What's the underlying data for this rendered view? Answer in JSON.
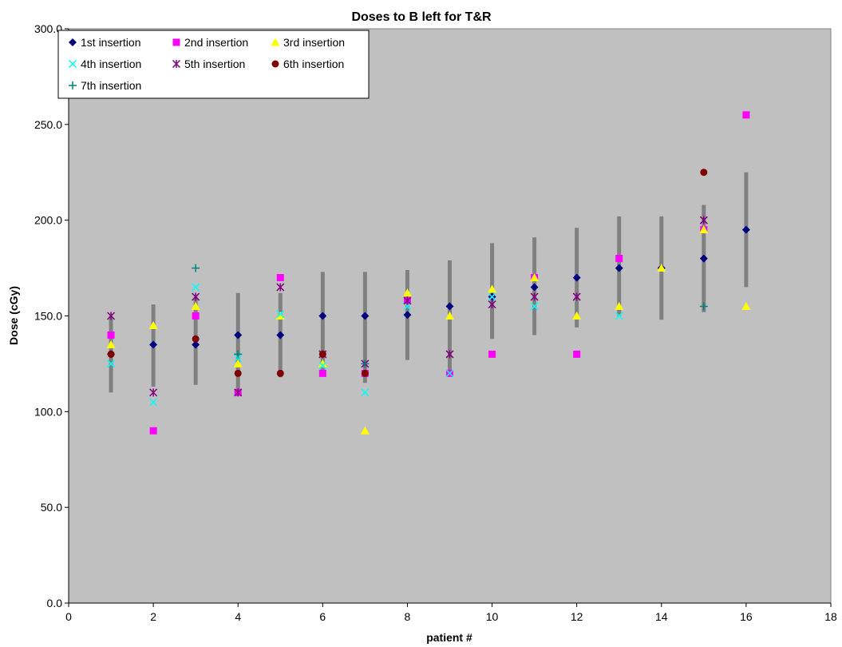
{
  "chart_data": {
    "type": "scatter",
    "title": "Doses to B left for T&R",
    "xlabel": "patient #",
    "ylabel": "Dose (cGy)",
    "xlim": [
      0,
      18
    ],
    "ylim": [
      0,
      300
    ],
    "x_ticks": [
      "0",
      "2",
      "4",
      "6",
      "8",
      "10",
      "12",
      "14",
      "16",
      "18"
    ],
    "y_ticks": [
      "0.0",
      "50.0",
      "100.0",
      "150.0",
      "200.0",
      "250.0",
      "300.0"
    ],
    "grid": false,
    "legend_position": "top-left",
    "plot_background": "#c0c0c0",
    "range_bar_color": "#808080",
    "range_bars": [
      {
        "x": 1,
        "low": 110,
        "high": 150
      },
      {
        "x": 2,
        "low": 113,
        "high": 156
      },
      {
        "x": 3,
        "low": 114,
        "high": 160
      },
      {
        "x": 4,
        "low": 110,
        "high": 162
      },
      {
        "x": 5,
        "low": 118,
        "high": 162
      },
      {
        "x": 6,
        "low": 120,
        "high": 173
      },
      {
        "x": 7,
        "low": 115,
        "high": 173
      },
      {
        "x": 8,
        "low": 127,
        "high": 174
      },
      {
        "x": 9,
        "low": 120,
        "high": 179
      },
      {
        "x": 10,
        "low": 138,
        "high": 188
      },
      {
        "x": 11,
        "low": 140,
        "high": 191
      },
      {
        "x": 12,
        "low": 144,
        "high": 196
      },
      {
        "x": 13,
        "low": 150,
        "high": 202
      },
      {
        "x": 14,
        "low": 148,
        "high": 202
      },
      {
        "x": 15,
        "low": 152,
        "high": 208
      },
      {
        "x": 16,
        "low": 165,
        "high": 225
      }
    ],
    "series": [
      {
        "name": "1st insertion",
        "marker": "diamond",
        "color": "#000080",
        "points": [
          [
            1,
            130
          ],
          [
            2,
            135
          ],
          [
            3,
            135
          ],
          [
            4,
            140
          ],
          [
            5,
            140
          ],
          [
            6,
            150
          ],
          [
            7,
            150
          ],
          [
            8,
            150.5
          ],
          [
            9,
            155
          ],
          [
            10,
            160
          ],
          [
            11,
            165
          ],
          [
            12,
            170
          ],
          [
            13,
            175
          ],
          [
            14,
            175
          ],
          [
            15,
            180
          ],
          [
            16,
            195
          ]
        ]
      },
      {
        "name": "2nd insertion",
        "marker": "square",
        "color": "#ff00ff",
        "points": [
          [
            1,
            140
          ],
          [
            2,
            90
          ],
          [
            3,
            150
          ],
          [
            4,
            110
          ],
          [
            5,
            170
          ],
          [
            6,
            120
          ],
          [
            7,
            120
          ],
          [
            8,
            158
          ],
          [
            9,
            120
          ],
          [
            10,
            130
          ],
          [
            11,
            170
          ],
          [
            12,
            130
          ],
          [
            13,
            180
          ],
          [
            15,
            195
          ],
          [
            16,
            255
          ]
        ]
      },
      {
        "name": "3rd insertion",
        "marker": "triangle",
        "color": "#ffff00",
        "points": [
          [
            1,
            135
          ],
          [
            2,
            145
          ],
          [
            3,
            155
          ],
          [
            4,
            125
          ],
          [
            5,
            150
          ],
          [
            6,
            125
          ],
          [
            7,
            90
          ],
          [
            8,
            162
          ],
          [
            9,
            150
          ],
          [
            10,
            164
          ],
          [
            11,
            170
          ],
          [
            12,
            150
          ],
          [
            13,
            155
          ],
          [
            14,
            175
          ],
          [
            15,
            195
          ],
          [
            16,
            155
          ]
        ]
      },
      {
        "name": "4th insertion",
        "marker": "x",
        "color": "#00ffff",
        "points": [
          [
            1,
            125
          ],
          [
            2,
            105
          ],
          [
            3,
            165
          ],
          [
            4,
            128
          ],
          [
            5,
            151
          ],
          [
            6,
            124
          ],
          [
            7,
            110
          ],
          [
            8,
            155
          ],
          [
            9,
            120
          ],
          [
            10,
            160
          ],
          [
            11,
            155
          ],
          [
            13,
            150
          ]
        ]
      },
      {
        "name": "5th insertion",
        "marker": "star",
        "color": "#800080",
        "points": [
          [
            1,
            150
          ],
          [
            2,
            110
          ],
          [
            3,
            160
          ],
          [
            4,
            110
          ],
          [
            5,
            165
          ],
          [
            6,
            130
          ],
          [
            7,
            125
          ],
          [
            8,
            158
          ],
          [
            9,
            130
          ],
          [
            10,
            156
          ],
          [
            11,
            160
          ],
          [
            12,
            160
          ],
          [
            15,
            200
          ]
        ]
      },
      {
        "name": "6th insertion",
        "marker": "circle",
        "color": "#800000",
        "points": [
          [
            1,
            130
          ],
          [
            3,
            138
          ],
          [
            4,
            120
          ],
          [
            5,
            120
          ],
          [
            6,
            130
          ],
          [
            7,
            120
          ],
          [
            15,
            225
          ]
        ]
      },
      {
        "name": "7th insertion",
        "marker": "plus",
        "color": "#008080",
        "points": [
          [
            3,
            175
          ],
          [
            4,
            130
          ],
          [
            7,
            125
          ],
          [
            15,
            155
          ]
        ]
      }
    ]
  }
}
